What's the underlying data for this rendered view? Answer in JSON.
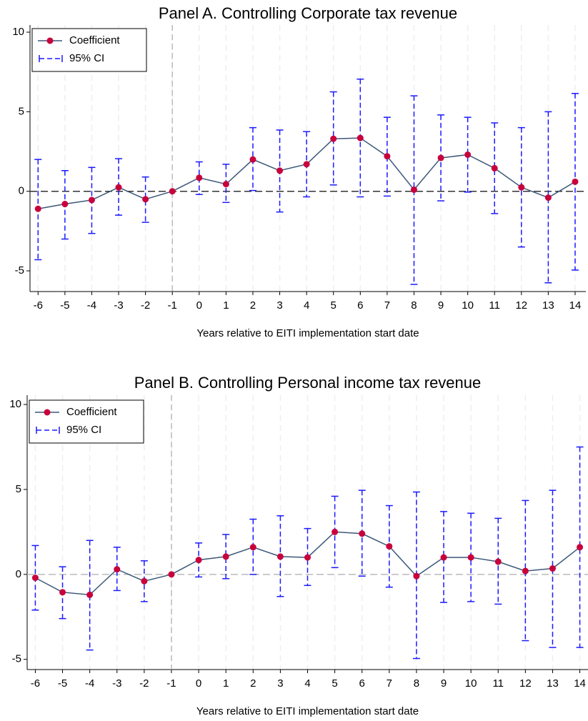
{
  "chart_data": [
    {
      "type": "line",
      "title": "Panel A. Controlling Corporate tax revenue",
      "x_label": "Years relative to EITI implementation start date",
      "x": [
        -6,
        -5,
        -4,
        -3,
        -2,
        -1,
        0,
        1,
        2,
        3,
        4,
        5,
        6,
        7,
        8,
        9,
        10,
        11,
        12,
        13,
        14
      ],
      "series": [
        {
          "name": "Coefficient",
          "color": "#c8003c",
          "line_color": "#3b5878",
          "values": [
            -1.1,
            -0.8,
            -0.55,
            0.25,
            -0.5,
            0,
            0.85,
            0.45,
            2.0,
            1.3,
            1.7,
            3.3,
            3.35,
            2.2,
            0.1,
            2.1,
            2.3,
            1.45,
            0.25,
            -0.4,
            0.6
          ]
        },
        {
          "name": "95% CI",
          "color": "#1a1aff",
          "upper": [
            2.0,
            1.3,
            1.5,
            2.05,
            0.9,
            null,
            1.85,
            1.7,
            4.0,
            3.85,
            3.75,
            6.25,
            7.05,
            4.65,
            6.0,
            4.8,
            4.65,
            4.3,
            4.0,
            5.0,
            6.15
          ],
          "lower": [
            -4.3,
            -3.0,
            -2.65,
            -1.5,
            -1.95,
            null,
            -0.2,
            -0.7,
            0.05,
            -1.3,
            -0.35,
            0.4,
            -0.35,
            -0.3,
            -5.85,
            -0.6,
            -0.05,
            -1.4,
            -3.5,
            -5.75,
            -4.95
          ]
        }
      ],
      "xlim": [
        -6.3,
        14.4
      ],
      "xticks": [
        -6,
        -5,
        -4,
        -3,
        -2,
        -1,
        0,
        1,
        2,
        3,
        4,
        5,
        6,
        7,
        8,
        9,
        10,
        11,
        12,
        13,
        14
      ],
      "ylim": [
        -6.3,
        10.45
      ],
      "yticks": [
        -5,
        0,
        5,
        10
      ],
      "hline": 0,
      "hline_color": "#333333",
      "vline": -1,
      "grid": true,
      "legend": "upper left"
    },
    {
      "type": "line",
      "title": "Panel B. Controlling Personal income tax revenue",
      "x_label": "Years relative to EITI implementation start date",
      "x": [
        -6,
        -5,
        -4,
        -3,
        -2,
        -1,
        0,
        1,
        2,
        3,
        4,
        5,
        6,
        7,
        8,
        9,
        10,
        11,
        12,
        13,
        14
      ],
      "series": [
        {
          "name": "Coefficient",
          "color": "#c8003c",
          "line_color": "#3b5878",
          "values": [
            -0.2,
            -1.05,
            -1.2,
            0.3,
            -0.4,
            0,
            0.85,
            1.05,
            1.6,
            1.05,
            1.0,
            2.5,
            2.4,
            1.65,
            -0.1,
            1.0,
            1.0,
            0.75,
            0.2,
            0.35,
            1.6
          ]
        },
        {
          "name": "95% CI",
          "color": "#1a1aff",
          "upper": [
            1.7,
            0.45,
            2.0,
            1.6,
            0.8,
            null,
            1.85,
            2.35,
            3.25,
            3.45,
            2.7,
            4.6,
            4.95,
            4.05,
            4.85,
            3.7,
            3.6,
            3.3,
            4.35,
            4.95,
            7.5
          ],
          "lower": [
            -2.1,
            -2.6,
            -4.45,
            -0.95,
            -1.6,
            null,
            -0.15,
            -0.25,
            0,
            -1.3,
            -0.65,
            0.4,
            -0.1,
            -0.75,
            -4.95,
            -1.65,
            -1.6,
            -1.75,
            -3.9,
            -4.3,
            -4.3
          ]
        }
      ],
      "xlim": [
        -6.3,
        14.3
      ],
      "xticks": [
        -6,
        -5,
        -4,
        -3,
        -2,
        -1,
        0,
        1,
        2,
        3,
        4,
        5,
        6,
        7,
        8,
        9,
        10,
        11,
        12,
        13,
        14
      ],
      "ylim": [
        -5.6,
        10.55
      ],
      "yticks": [
        -5,
        0,
        5,
        10
      ],
      "hline": 0,
      "hline_color": "#bbbbbb",
      "vline": -1,
      "grid": true,
      "legend": "upper left"
    }
  ]
}
